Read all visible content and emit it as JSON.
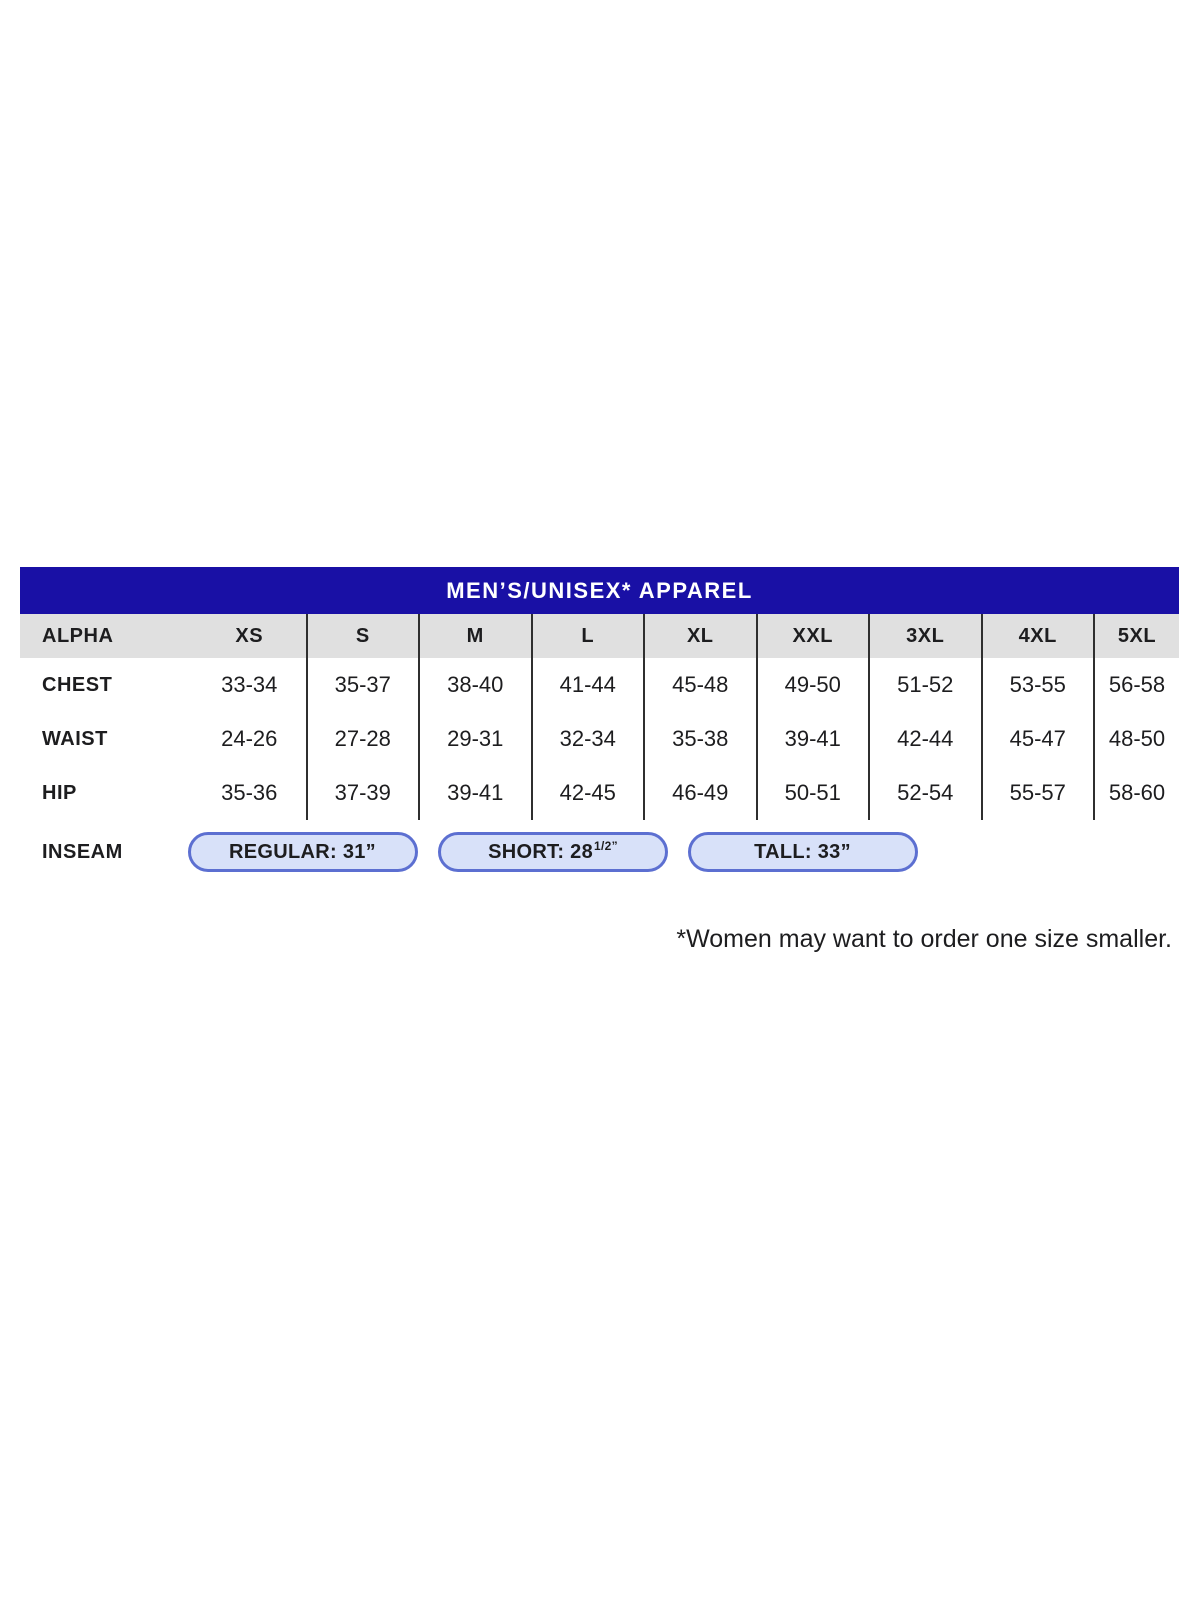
{
  "chart_data": {
    "type": "table",
    "title": "MEN’S/UNISEX* APPAREL",
    "header": {
      "label": "ALPHA",
      "sizes": [
        "XS",
        "S",
        "M",
        "L",
        "XL",
        "XXL",
        "3XL",
        "4XL",
        "5XL"
      ]
    },
    "rows": [
      {
        "label": "CHEST",
        "values": [
          "33-34",
          "35-37",
          "38-40",
          "41-44",
          "45-48",
          "49-50",
          "51-52",
          "53-55",
          "56-58"
        ]
      },
      {
        "label": "WAIST",
        "values": [
          "24-26",
          "27-28",
          "29-31",
          "32-34",
          "35-38",
          "39-41",
          "42-44",
          "45-47",
          "48-50"
        ]
      },
      {
        "label": "HIP",
        "values": [
          "35-36",
          "37-39",
          "39-41",
          "42-45",
          "46-49",
          "50-51",
          "52-54",
          "55-57",
          "58-60"
        ]
      }
    ],
    "inseam": {
      "label": "INSEAM",
      "pills": [
        {
          "text": "REGULAR: 31”"
        },
        {
          "text": "SHORT: 28",
          "sup": "1/2”"
        },
        {
          "text": "TALL: 33”"
        }
      ]
    },
    "footnote": "*Women may want to order one size smaller."
  },
  "colors": {
    "title_bar_blue": "#1910A5",
    "title_text": "#FFFFFF",
    "header_row_gray": "#E0E0E0",
    "divider": "#2F2F2F",
    "body_text": "#1D1D1F",
    "pill_fill": "#D8E1F9",
    "pill_border": "#5C6FD1",
    "page_background": "#FFFFFF"
  }
}
